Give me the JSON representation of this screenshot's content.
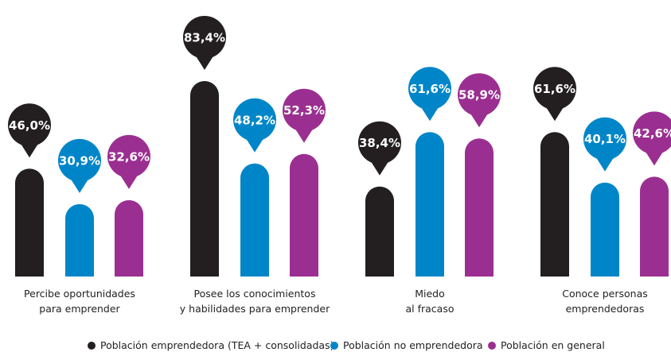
{
  "chart_data": {
    "type": "bar",
    "categories": [
      "Percibe oportunidades\npara emprender",
      "Posee los conocimientos\ny habilidades para emprender",
      "Miedo\nal fracaso",
      "Conoce personas\nemprendedoras"
    ],
    "series": [
      {
        "name": "Población emprendedora (TEA + consolidadas)",
        "color": "#231f20",
        "values": [
          46.0,
          83.4,
          38.4,
          61.6
        ],
        "value_labels": [
          "46,0%",
          "83,4%",
          "38,4%",
          "61,6%"
        ]
      },
      {
        "name": "Población no emprendedora",
        "color": "#0086c8",
        "values": [
          30.9,
          48.2,
          61.6,
          40.1
        ],
        "value_labels": [
          "30,9%",
          "48,2%",
          "61,6%",
          "40,1%"
        ]
      },
      {
        "name": "Población en general",
        "color": "#9b2f91",
        "values": [
          32.6,
          52.3,
          58.9,
          42.6
        ],
        "value_labels": [
          "32,6%",
          "52,3%",
          "58,9%",
          "42,6%"
        ]
      }
    ]
  }
}
